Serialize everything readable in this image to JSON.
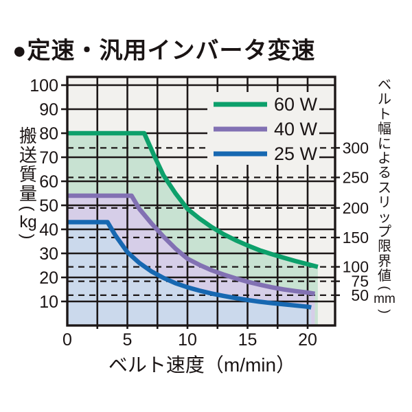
{
  "title": "●定速・汎用インバータ変速",
  "chart_data": {
    "type": "line",
    "xlabel": "ベルト速度（m/min）",
    "ylabel_left": "搬送質量(kg)",
    "ylabel_right": "ベルト幅によるスリップ限界値(mm)",
    "xlim": [
      0,
      22.3
    ],
    "ylim": [
      0,
      103.4
    ],
    "grid": true,
    "grid_x_step": 2.5,
    "x_ticks": [
      0,
      5,
      10,
      15,
      20
    ],
    "y_ticks_left": [
      10,
      20,
      30,
      40,
      50,
      60,
      70,
      80,
      90,
      100
    ],
    "legend_position": "top-right",
    "plot_bg": "#f2f1ee",
    "grid_color": "#1c1717",
    "text_color": "#1a1414",
    "right_axis_marks": [
      {
        "label": "300",
        "mm": 300,
        "kg": 73.9
      },
      {
        "label": "250",
        "mm": 250,
        "kg": 61.6
      },
      {
        "label": "200",
        "mm": 200,
        "kg": 48.9
      },
      {
        "label": "150",
        "mm": 150,
        "kg": 36.6
      },
      {
        "label": "100",
        "mm": 100,
        "kg": 24.4
      },
      {
        "label": "75",
        "mm": 75,
        "kg": 18.4
      },
      {
        "label": "50",
        "mm": 50,
        "kg": 12.6
      }
    ],
    "series": [
      {
        "name": "60 W",
        "color": "#0da06b",
        "fill": "#c8e2d2",
        "points": [
          [
            0,
            80
          ],
          [
            6.4,
            80
          ],
          [
            7.2,
            71
          ],
          [
            8,
            62.5
          ],
          [
            9,
            55
          ],
          [
            10,
            48.5
          ],
          [
            11,
            44.5
          ],
          [
            12,
            41
          ],
          [
            13,
            38
          ],
          [
            14,
            35.5
          ],
          [
            15,
            33.3
          ],
          [
            16,
            31.3
          ],
          [
            17,
            29.7
          ],
          [
            18,
            28.2
          ],
          [
            19,
            26.8
          ],
          [
            20,
            25.5
          ],
          [
            20.85,
            24.4
          ]
        ]
      },
      {
        "name": "40 W",
        "color": "#8271b3",
        "fill": "#d6cee8",
        "points": [
          [
            0,
            54
          ],
          [
            5.35,
            54
          ],
          [
            6,
            48.5
          ],
          [
            7,
            42.5
          ],
          [
            8,
            37
          ],
          [
            9,
            32
          ],
          [
            10,
            27.8
          ],
          [
            11,
            25.2
          ],
          [
            12,
            23
          ],
          [
            13,
            21.2
          ],
          [
            14,
            19.6
          ],
          [
            15,
            18.2
          ],
          [
            16,
            17
          ],
          [
            17,
            15.9
          ],
          [
            18,
            15
          ],
          [
            19,
            14.3
          ],
          [
            20,
            13.7
          ],
          [
            20.6,
            13.2
          ]
        ]
      },
      {
        "name": "25 W",
        "color": "#1768b1",
        "fill": "#cbd9ec",
        "points": [
          [
            0,
            43
          ],
          [
            3.35,
            43
          ],
          [
            4,
            37.5
          ],
          [
            5,
            30.5
          ],
          [
            6,
            26
          ],
          [
            7,
            22.5
          ],
          [
            8,
            19.8
          ],
          [
            9,
            17.6
          ],
          [
            10,
            15.9
          ],
          [
            11,
            14.5
          ],
          [
            12,
            13.3
          ],
          [
            13,
            12.3
          ],
          [
            14,
            11.4
          ],
          [
            15,
            10.6
          ],
          [
            16,
            9.9
          ],
          [
            17,
            9.3
          ],
          [
            18,
            8.8
          ],
          [
            19,
            8.3
          ],
          [
            20,
            7.8
          ],
          [
            20.3,
            7.5
          ]
        ]
      }
    ]
  },
  "left_axis_title_chars": [
    "搬",
    "送",
    "質",
    "量",
    "(",
    "kg",
    ")"
  ],
  "right_axis_title_chars": [
    "ベ",
    "ル",
    "ト",
    "幅",
    "に",
    "よ",
    "る",
    "ス",
    "リ",
    "ッ",
    "プ",
    "限",
    "界",
    "値",
    "(",
    "mm",
    ")"
  ]
}
